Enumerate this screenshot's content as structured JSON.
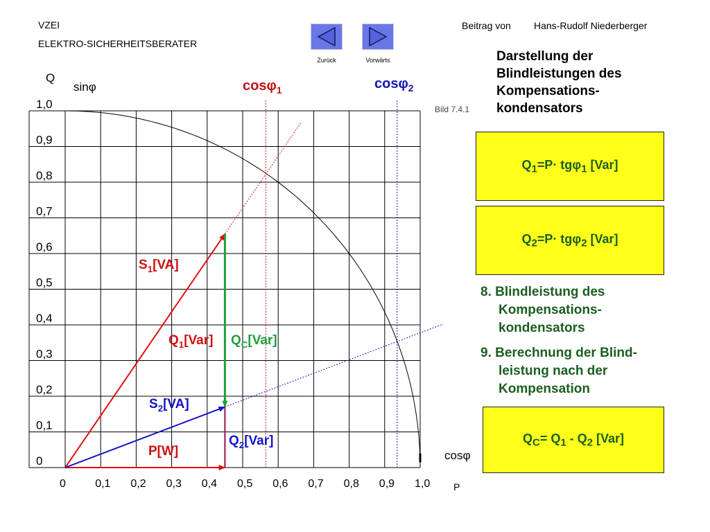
{
  "header": {
    "org": "VZEI",
    "subtitle": "ELEKTRO-SICHERHEITSBERATER",
    "contribution": "Beitrag von",
    "author": "Hans-Rudolf Niederberger"
  },
  "nav": {
    "back_label": "Zurück",
    "forward_label": "Vorwärts"
  },
  "figure_ref": "Bild 7.4.1",
  "title_lines": [
    "Darstellung der",
    "Blindleistungen des",
    "Kompensations-",
    "kondensators"
  ],
  "formulas": {
    "q1": {
      "pre": "Q",
      "sub": "1",
      "mid": "=P· tgφ",
      "sub2": "1",
      "post": " [Var]"
    },
    "q2": {
      "pre": "Q",
      "sub": "2",
      "mid": "=P· tgφ",
      "sub2": "2",
      "post": " [Var]"
    },
    "qc": {
      "pre": "Q",
      "sub": "C",
      "mid": "= Q",
      "sub2": "1",
      "mid2": " - Q",
      "sub3": "2",
      "post": "  [Var]"
    }
  },
  "steps": {
    "step8": [
      "8. Blindleistung des",
      "Kompensations-",
      "kondensators"
    ],
    "step9": [
      "9. Berechnung der Blind-",
      "leistung nach der",
      "Kompensation"
    ]
  },
  "colors": {
    "red": "#e01010",
    "blue": "#1414c8",
    "green": "#1f9e3a",
    "dark_green": "#1b5e20",
    "box_yellow": "#ffff1a",
    "nav_blue": "#6a78e6"
  },
  "chart_data": {
    "type": "line",
    "xlabel": "P",
    "ylabel": "Q",
    "x_axis_name": "cosφ",
    "y_axis_name": "sinφ",
    "xlim": [
      0,
      1.0
    ],
    "ylim": [
      0,
      1.0
    ],
    "xticks": [
      "0",
      "0,1",
      "0,2",
      "0,3",
      "0,4",
      "0,5",
      "0,6",
      "0,7",
      "0,8",
      "0,9",
      "1,0"
    ],
    "yticks": [
      "0",
      "0,1",
      "0,2",
      "0,3",
      "0,4",
      "0,5",
      "0,6",
      "0,7",
      "0,8",
      "0,9",
      "1,0"
    ],
    "grid": true,
    "unit_circle": true,
    "cos_phi1": 0.565,
    "cos_phi2": 0.935,
    "P": 0.45,
    "Q1": 0.655,
    "Q2": 0.17,
    "cos_phi1_label": {
      "base": "cosφ",
      "sub": "1"
    },
    "cos_phi2_label": {
      "base": "cosφ",
      "sub": "2"
    },
    "labels": {
      "S1": {
        "base": "S",
        "sub": "1",
        "post": "[VA]"
      },
      "Q1": {
        "base": "Q",
        "sub": "1",
        "post": "[Var]"
      },
      "QC": {
        "base": "Q",
        "sub": "C",
        "post": "[Var]"
      },
      "S2": {
        "base": "S",
        "sub": "2",
        "post": "[VA]"
      },
      "Q2": {
        "base": "Q",
        "sub": "2",
        "post": "[Var]"
      },
      "P": {
        "base": "P[W]"
      }
    }
  }
}
